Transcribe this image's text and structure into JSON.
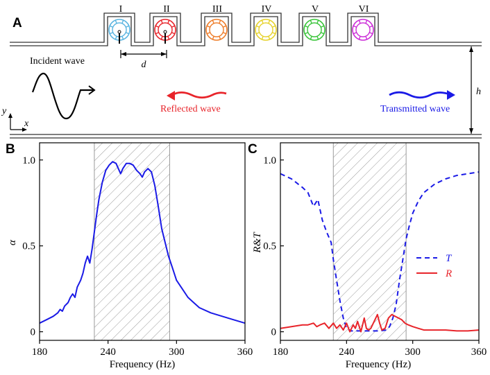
{
  "panel_a": {
    "letter": "A",
    "resonator_labels": [
      "I",
      "II",
      "III",
      "IV",
      "V",
      "VI"
    ],
    "resonator_colors": [
      "#5ab4e0",
      "#e8242a",
      "#ee7d2a",
      "#e6d22c",
      "#3ac43a",
      "#cc2ed8"
    ],
    "d_label": "d",
    "h_label": "h",
    "incident_label": "Incident wave",
    "reflected_label": "Reflected wave",
    "transmitted_label": "Transmitted wave",
    "axis_y": "y",
    "axis_x": "x",
    "reflected_color": "#e8242a",
    "transmitted_color": "#1a1ae6"
  },
  "chart_data": [
    {
      "id": "B",
      "type": "line",
      "panel_letter": "B",
      "xlabel": "Frequency (Hz)",
      "ylabel": "α",
      "xlim": [
        180,
        360
      ],
      "ylim": [
        -0.05,
        1.1
      ],
      "xticks": [
        180,
        240,
        300,
        360
      ],
      "xtick_labels": [
        "180",
        "240",
        "300",
        "360"
      ],
      "yticks": [
        0,
        0.5,
        1.0
      ],
      "ytick_labels": [
        "0",
        "0.5",
        "1.0"
      ],
      "shaded_band": [
        228,
        294
      ],
      "series": [
        {
          "name": "α",
          "color": "#1a1ae6",
          "style": "solid",
          "x": [
            180,
            186,
            192,
            196,
            198,
            200,
            202,
            205,
            207,
            209,
            211,
            213,
            216,
            218,
            220,
            222,
            224,
            226,
            228,
            230,
            232,
            235,
            238,
            241,
            244,
            247,
            249,
            251,
            253,
            256,
            259,
            262,
            265,
            268,
            270,
            272,
            275,
            278,
            281,
            284,
            287,
            290,
            293,
            296,
            300,
            305,
            310,
            315,
            320,
            330,
            340,
            350,
            360
          ],
          "y": [
            0.05,
            0.07,
            0.09,
            0.11,
            0.13,
            0.12,
            0.15,
            0.17,
            0.2,
            0.22,
            0.2,
            0.26,
            0.3,
            0.34,
            0.4,
            0.44,
            0.4,
            0.48,
            0.58,
            0.68,
            0.77,
            0.87,
            0.94,
            0.97,
            0.99,
            0.98,
            0.95,
            0.92,
            0.95,
            0.98,
            0.98,
            0.97,
            0.94,
            0.92,
            0.9,
            0.93,
            0.95,
            0.93,
            0.85,
            0.73,
            0.6,
            0.52,
            0.44,
            0.38,
            0.3,
            0.25,
            0.2,
            0.17,
            0.14,
            0.11,
            0.09,
            0.07,
            0.05
          ]
        }
      ]
    },
    {
      "id": "C",
      "type": "line",
      "panel_letter": "C",
      "xlabel": "Frequency (Hz)",
      "ylabel": "R&T",
      "xlim": [
        180,
        360
      ],
      "ylim": [
        -0.05,
        1.1
      ],
      "xticks": [
        180,
        240,
        300,
        360
      ],
      "xtick_labels": [
        "180",
        "240",
        "300",
        "360"
      ],
      "yticks": [
        0,
        0.5,
        1.0
      ],
      "ytick_labels": [
        "0",
        "0.5",
        "1.0"
      ],
      "shaded_band": [
        228,
        294
      ],
      "legend": [
        {
          "name": "T",
          "color": "#1a1ae6",
          "style": "dashed"
        },
        {
          "name": "R",
          "color": "#e8242a",
          "style": "solid"
        }
      ],
      "series": [
        {
          "name": "T",
          "color": "#1a1ae6",
          "style": "dashed",
          "x": [
            180,
            190,
            200,
            205,
            210,
            214,
            218,
            222,
            226,
            228,
            231,
            234,
            237,
            240,
            244,
            250,
            260,
            270,
            276,
            279,
            282,
            285,
            288,
            291,
            294,
            297,
            300,
            305,
            310,
            320,
            330,
            340,
            350,
            360
          ],
          "y": [
            0.92,
            0.89,
            0.84,
            0.81,
            0.73,
            0.77,
            0.65,
            0.58,
            0.52,
            0.42,
            0.3,
            0.18,
            0.08,
            0.02,
            0.005,
            0.005,
            0.005,
            0.005,
            0.01,
            0.03,
            0.08,
            0.16,
            0.3,
            0.42,
            0.54,
            0.62,
            0.69,
            0.76,
            0.81,
            0.86,
            0.89,
            0.91,
            0.92,
            0.93
          ]
        },
        {
          "name": "R",
          "color": "#e8242a",
          "style": "solid",
          "x": [
            180,
            190,
            200,
            205,
            210,
            213,
            216,
            220,
            224,
            228,
            231,
            234,
            237,
            240,
            243,
            246,
            248,
            250,
            253,
            256,
            258,
            260,
            262,
            265,
            268,
            270,
            272,
            275,
            278,
            281,
            284,
            287,
            290,
            293,
            296,
            300,
            305,
            310,
            320,
            330,
            340,
            350,
            360
          ],
          "y": [
            0.02,
            0.03,
            0.04,
            0.04,
            0.05,
            0.03,
            0.04,
            0.05,
            0.02,
            0.05,
            0.02,
            0.04,
            0.01,
            0.05,
            0.0,
            0.04,
            0.02,
            0.06,
            0.0,
            0.08,
            0.02,
            0.01,
            0.02,
            0.06,
            0.1,
            0.05,
            0.01,
            0.02,
            0.08,
            0.1,
            0.09,
            0.08,
            0.07,
            0.05,
            0.04,
            0.03,
            0.02,
            0.01,
            0.01,
            0.01,
            0.005,
            0.005,
            0.01
          ]
        }
      ]
    }
  ]
}
